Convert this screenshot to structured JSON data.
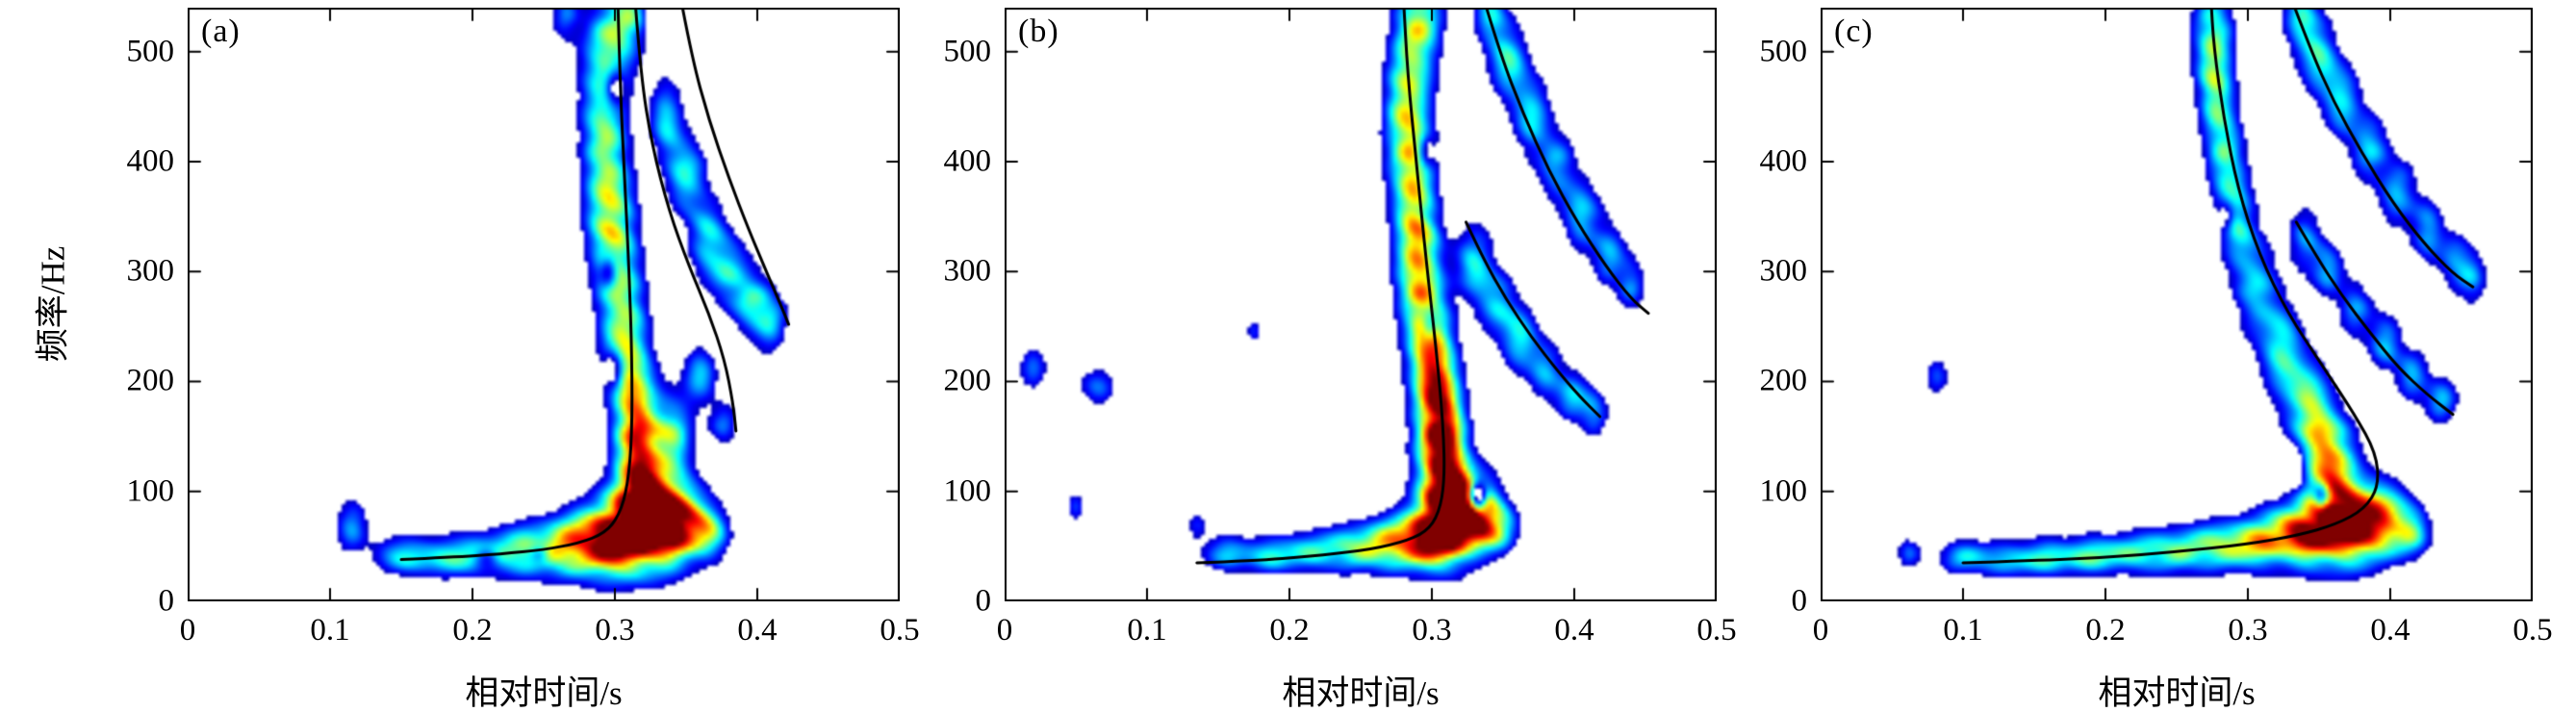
{
  "figure": {
    "xlabel": "相对时间/s",
    "ylabel": "频率/Hz"
  },
  "chart_data": [
    {
      "type": "heatmap",
      "panel_label": "(a)",
      "xlabel": "相对时间/s",
      "ylabel": "频率/Hz",
      "colormap": "jet",
      "xlim": [
        0,
        0.5
      ],
      "ylim": [
        0,
        540
      ],
      "xticks": [
        0,
        0.1,
        0.2,
        0.3,
        0.4,
        0.5
      ],
      "xtick_labels": [
        "0",
        "0.1",
        "0.2",
        "0.3",
        "0.4",
        "0.5"
      ],
      "yticks": [
        0,
        100,
        200,
        300,
        400,
        500
      ],
      "ytick_labels": [
        "0",
        "100",
        "200",
        "300",
        "400",
        "500"
      ],
      "blob_format": "[time_s, freq_hz, sigma_t_s, sigma_f_hz, amplitude]",
      "blobs": [
        [
          0.115,
          68,
          0.008,
          16,
          0.4
        ],
        [
          0.148,
          42,
          0.013,
          12,
          0.44
        ],
        [
          0.178,
          40,
          0.014,
          13,
          0.47
        ],
        [
          0.208,
          43,
          0.014,
          14,
          0.5
        ],
        [
          0.238,
          46,
          0.015,
          16,
          0.58
        ],
        [
          0.268,
          50,
          0.015,
          19,
          0.7
        ],
        [
          0.295,
          58,
          0.015,
          23,
          0.95
        ],
        [
          0.32,
          66,
          0.016,
          27,
          1.18
        ],
        [
          0.345,
          72,
          0.013,
          24,
          0.95
        ],
        [
          0.366,
          62,
          0.01,
          17,
          0.5
        ],
        [
          0.318,
          115,
          0.012,
          30,
          0.85
        ],
        [
          0.315,
          170,
          0.011,
          30,
          0.7
        ],
        [
          0.308,
          225,
          0.011,
          30,
          0.55
        ],
        [
          0.303,
          285,
          0.011,
          33,
          0.6
        ],
        [
          0.297,
          355,
          0.012,
          35,
          0.68
        ],
        [
          0.292,
          430,
          0.011,
          33,
          0.5
        ],
        [
          0.295,
          500,
          0.012,
          33,
          0.62
        ],
        [
          0.312,
          545,
          0.01,
          26,
          0.5
        ],
        [
          0.265,
          535,
          0.007,
          18,
          0.35
        ],
        [
          0.34,
          150,
          0.01,
          25,
          0.55
        ],
        [
          0.36,
          205,
          0.008,
          18,
          0.45
        ],
        [
          0.376,
          162,
          0.007,
          14,
          0.35
        ],
        [
          0.336,
          440,
          0.008,
          24,
          0.45
        ],
        [
          0.35,
          388,
          0.009,
          24,
          0.55
        ],
        [
          0.365,
          332,
          0.009,
          24,
          0.5
        ],
        [
          0.38,
          300,
          0.009,
          22,
          0.45
        ],
        [
          0.396,
          272,
          0.009,
          21,
          0.5
        ],
        [
          0.41,
          254,
          0.008,
          19,
          0.4
        ],
        [
          0.21,
          40,
          0.006,
          7,
          -0.35
        ],
        [
          0.247,
          43,
          0.005,
          6,
          -0.3
        ],
        [
          0.3,
          212,
          0.005,
          12,
          -0.45
        ],
        [
          0.296,
          300,
          0.004,
          10,
          -0.4
        ],
        [
          0.3,
          468,
          0.005,
          12,
          -0.45
        ],
        [
          0.33,
          540,
          0.006,
          13,
          -0.35
        ]
      ],
      "ridge_format": "list of [time_s, freq_hz] polylines",
      "ridges": [
        [
          [
            0.15,
            38
          ],
          [
            0.185,
            40
          ],
          [
            0.22,
            43
          ],
          [
            0.25,
            47
          ],
          [
            0.275,
            53
          ],
          [
            0.293,
            62
          ],
          [
            0.303,
            78
          ],
          [
            0.309,
            105
          ],
          [
            0.312,
            150
          ],
          [
            0.312,
            220
          ],
          [
            0.31,
            300
          ],
          [
            0.307,
            380
          ],
          [
            0.304,
            460
          ],
          [
            0.302,
            550
          ]
        ],
        [
          [
            0.314,
            550
          ],
          [
            0.318,
            480
          ],
          [
            0.326,
            415
          ],
          [
            0.338,
            355
          ],
          [
            0.352,
            305
          ],
          [
            0.366,
            262
          ],
          [
            0.377,
            220
          ],
          [
            0.383,
            180
          ],
          [
            0.385,
            155
          ]
        ],
        [
          [
            0.346,
            550
          ],
          [
            0.354,
            495
          ],
          [
            0.366,
            438
          ],
          [
            0.38,
            385
          ],
          [
            0.394,
            338
          ],
          [
            0.407,
            298
          ],
          [
            0.417,
            268
          ],
          [
            0.422,
            252
          ]
        ]
      ]
    },
    {
      "type": "heatmap",
      "panel_label": "(b)",
      "xlabel": "相对时间/s",
      "ylabel": "",
      "colormap": "jet",
      "xlim": [
        0,
        0.5
      ],
      "ylim": [
        0,
        540
      ],
      "xticks": [
        0,
        0.1,
        0.2,
        0.3,
        0.4,
        0.5
      ],
      "xtick_labels": [
        "0",
        "0.1",
        "0.2",
        "0.3",
        "0.4",
        "0.5"
      ],
      "yticks": [
        0,
        100,
        200,
        300,
        400,
        500
      ],
      "ytick_labels": [
        "0",
        "100",
        "200",
        "300",
        "400",
        "500"
      ],
      "blob_format": "[time_s, freq_hz, sigma_t_s, sigma_f_hz, amplitude]",
      "blobs": [
        [
          0.02,
          212,
          0.007,
          14,
          0.32
        ],
        [
          0.065,
          196,
          0.009,
          13,
          0.32
        ],
        [
          0.05,
          85,
          0.005,
          10,
          0.26
        ],
        [
          0.175,
          245,
          0.004,
          8,
          0.26
        ],
        [
          0.135,
          68,
          0.005,
          9,
          0.24
        ],
        [
          0.155,
          44,
          0.012,
          11,
          0.42
        ],
        [
          0.185,
          42,
          0.013,
          12,
          0.46
        ],
        [
          0.215,
          45,
          0.013,
          13,
          0.5
        ],
        [
          0.245,
          48,
          0.014,
          14,
          0.56
        ],
        [
          0.272,
          52,
          0.014,
          16,
          0.68
        ],
        [
          0.296,
          60,
          0.013,
          20,
          0.9
        ],
        [
          0.315,
          72,
          0.013,
          25,
          1.1
        ],
        [
          0.332,
          82,
          0.011,
          22,
          0.85
        ],
        [
          0.348,
          66,
          0.009,
          15,
          0.5
        ],
        [
          0.308,
          118,
          0.012,
          30,
          1.0
        ],
        [
          0.305,
          168,
          0.011,
          30,
          0.92
        ],
        [
          0.3,
          220,
          0.011,
          30,
          0.72
        ],
        [
          0.294,
          272,
          0.011,
          30,
          0.62
        ],
        [
          0.29,
          325,
          0.011,
          32,
          0.66
        ],
        [
          0.286,
          385,
          0.011,
          32,
          0.52
        ],
        [
          0.283,
          440,
          0.011,
          32,
          0.56
        ],
        [
          0.286,
          495,
          0.011,
          32,
          0.48
        ],
        [
          0.292,
          540,
          0.011,
          30,
          0.52
        ],
        [
          0.33,
          310,
          0.009,
          22,
          0.5
        ],
        [
          0.345,
          272,
          0.009,
          20,
          0.46
        ],
        [
          0.362,
          238,
          0.009,
          20,
          0.5
        ],
        [
          0.38,
          210,
          0.008,
          18,
          0.42
        ],
        [
          0.398,
          188,
          0.008,
          16,
          0.42
        ],
        [
          0.414,
          172,
          0.007,
          15,
          0.36
        ],
        [
          0.34,
          540,
          0.008,
          24,
          0.46
        ],
        [
          0.354,
          492,
          0.009,
          24,
          0.52
        ],
        [
          0.37,
          442,
          0.009,
          24,
          0.46
        ],
        [
          0.388,
          396,
          0.009,
          22,
          0.42
        ],
        [
          0.406,
          352,
          0.009,
          22,
          0.46
        ],
        [
          0.424,
          315,
          0.008,
          20,
          0.4
        ],
        [
          0.44,
          288,
          0.007,
          18,
          0.36
        ],
        [
          0.332,
          95,
          0.0045,
          9,
          -1.1
        ],
        [
          0.298,
          250,
          0.004,
          10,
          -0.35
        ],
        [
          0.296,
          410,
          0.004,
          10,
          -0.3
        ]
      ],
      "ridge_format": "list of [time_s, freq_hz] polylines",
      "ridges": [
        [
          [
            0.135,
            35
          ],
          [
            0.175,
            37
          ],
          [
            0.215,
            41
          ],
          [
            0.25,
            46
          ],
          [
            0.278,
            53
          ],
          [
            0.296,
            63
          ],
          [
            0.305,
            80
          ],
          [
            0.309,
            110
          ],
          [
            0.308,
            160
          ],
          [
            0.303,
            230
          ],
          [
            0.296,
            310
          ],
          [
            0.289,
            400
          ],
          [
            0.283,
            480
          ],
          [
            0.28,
            550
          ]
        ],
        [
          [
            0.324,
            345
          ],
          [
            0.336,
            312
          ],
          [
            0.352,
            275
          ],
          [
            0.37,
            240
          ],
          [
            0.388,
            210
          ],
          [
            0.404,
            186
          ],
          [
            0.418,
            168
          ]
        ],
        [
          [
            0.336,
            550
          ],
          [
            0.348,
            498
          ],
          [
            0.364,
            444
          ],
          [
            0.382,
            392
          ],
          [
            0.402,
            345
          ],
          [
            0.422,
            305
          ],
          [
            0.44,
            275
          ],
          [
            0.452,
            262
          ]
        ]
      ]
    },
    {
      "type": "heatmap",
      "panel_label": "(c)",
      "xlabel": "相对时间/s",
      "ylabel": "",
      "colormap": "jet",
      "xlim": [
        0,
        0.5
      ],
      "ylim": [
        0,
        540
      ],
      "xticks": [
        0,
        0.1,
        0.2,
        0.3,
        0.4,
        0.5
      ],
      "xtick_labels": [
        "0",
        "0.1",
        "0.2",
        "0.3",
        "0.4",
        "0.5"
      ],
      "yticks": [
        0,
        100,
        200,
        300,
        400,
        500
      ],
      "ytick_labels": [
        "0",
        "100",
        "200",
        "300",
        "400",
        "500"
      ],
      "blob_format": "[time_s, freq_hz, sigma_t_s, sigma_f_hz, amplitude]",
      "blobs": [
        [
          0.082,
          205,
          0.006,
          12,
          0.3
        ],
        [
          0.062,
          44,
          0.006,
          10,
          0.3
        ],
        [
          0.1,
          40,
          0.012,
          11,
          0.42
        ],
        [
          0.13,
          38,
          0.013,
          11,
          0.46
        ],
        [
          0.16,
          40,
          0.014,
          12,
          0.48
        ],
        [
          0.19,
          42,
          0.014,
          12,
          0.5
        ],
        [
          0.22,
          44,
          0.014,
          13,
          0.52
        ],
        [
          0.25,
          46,
          0.014,
          14,
          0.55
        ],
        [
          0.28,
          50,
          0.014,
          15,
          0.6
        ],
        [
          0.31,
          55,
          0.014,
          17,
          0.7
        ],
        [
          0.34,
          62,
          0.015,
          20,
          0.92
        ],
        [
          0.368,
          70,
          0.015,
          25,
          1.18
        ],
        [
          0.395,
          74,
          0.012,
          22,
          0.9
        ],
        [
          0.416,
          62,
          0.009,
          15,
          0.5
        ],
        [
          0.358,
          130,
          0.012,
          28,
          0.85
        ],
        [
          0.342,
          178,
          0.011,
          28,
          0.62
        ],
        [
          0.324,
          228,
          0.01,
          28,
          0.52
        ],
        [
          0.306,
          285,
          0.01,
          30,
          0.48
        ],
        [
          0.293,
          345,
          0.009,
          30,
          0.46
        ],
        [
          0.284,
          405,
          0.009,
          30,
          0.46
        ],
        [
          0.278,
          465,
          0.009,
          30,
          0.5
        ],
        [
          0.275,
          520,
          0.01,
          30,
          0.55
        ],
        [
          0.34,
          330,
          0.008,
          20,
          0.4
        ],
        [
          0.356,
          302,
          0.008,
          18,
          0.4
        ],
        [
          0.376,
          266,
          0.008,
          18,
          0.4
        ],
        [
          0.396,
          236,
          0.008,
          18,
          0.45
        ],
        [
          0.416,
          206,
          0.008,
          16,
          0.42
        ],
        [
          0.436,
          183,
          0.008,
          15,
          0.4
        ],
        [
          0.336,
          535,
          0.008,
          24,
          0.5
        ],
        [
          0.35,
          496,
          0.009,
          24,
          0.5
        ],
        [
          0.366,
          455,
          0.009,
          23,
          0.46
        ],
        [
          0.386,
          412,
          0.009,
          22,
          0.44
        ],
        [
          0.406,
          372,
          0.009,
          22,
          0.42
        ],
        [
          0.426,
          337,
          0.008,
          20,
          0.4
        ],
        [
          0.446,
          310,
          0.008,
          18,
          0.38
        ],
        [
          0.458,
          293,
          0.007,
          16,
          0.33
        ],
        [
          0.332,
          122,
          0.005,
          11,
          -0.4
        ],
        [
          0.352,
          95,
          0.004,
          9,
          -0.5
        ],
        [
          0.285,
          350,
          0.004,
          9,
          -0.28
        ]
      ],
      "ridge_format": "list of [time_s, freq_hz] polylines",
      "ridges": [
        [
          [
            0.1,
            35
          ],
          [
            0.15,
            37
          ],
          [
            0.2,
            40
          ],
          [
            0.25,
            45
          ],
          [
            0.3,
            52
          ],
          [
            0.335,
            60
          ],
          [
            0.362,
            70
          ],
          [
            0.382,
            84
          ],
          [
            0.392,
            105
          ],
          [
            0.39,
            135
          ],
          [
            0.375,
            170
          ],
          [
            0.352,
            215
          ],
          [
            0.328,
            262
          ],
          [
            0.308,
            315
          ],
          [
            0.293,
            375
          ],
          [
            0.283,
            440
          ],
          [
            0.276,
            505
          ],
          [
            0.274,
            550
          ]
        ],
        [
          [
            0.334,
            345
          ],
          [
            0.348,
            314
          ],
          [
            0.366,
            278
          ],
          [
            0.386,
            244
          ],
          [
            0.406,
            212
          ],
          [
            0.426,
            188
          ],
          [
            0.444,
            170
          ]
        ],
        [
          [
            0.33,
            550
          ],
          [
            0.344,
            502
          ],
          [
            0.36,
            455
          ],
          [
            0.38,
            408
          ],
          [
            0.402,
            362
          ],
          [
            0.424,
            325
          ],
          [
            0.444,
            298
          ],
          [
            0.458,
            286
          ]
        ]
      ]
    }
  ]
}
